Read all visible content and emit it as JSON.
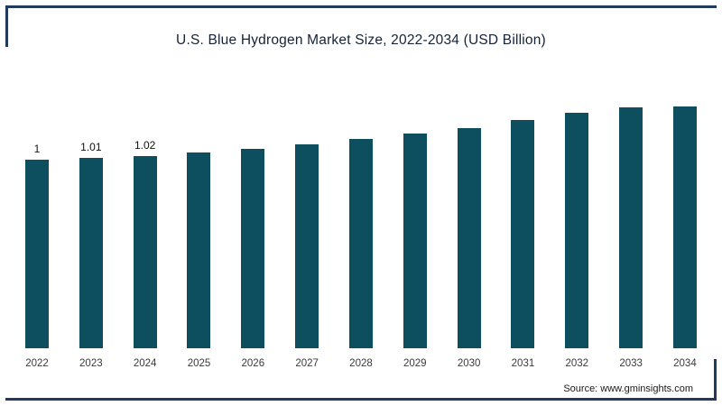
{
  "title": "U.S. Blue Hydrogen Market Size, 2022-2034 (USD Billion)",
  "footer": {
    "source": "Source: www.gminsights.com"
  },
  "colors": {
    "bar": "#0d4f5f",
    "frame": "#223a5e",
    "title_text": "#152238",
    "tick_text": "#3a3a3a"
  },
  "chart_data": {
    "type": "bar",
    "title": "U.S. Blue Hydrogen Market Size, 2022-2034 (USD Billion)",
    "categories": [
      "2022",
      "2023",
      "2024",
      "2025",
      "2026",
      "2027",
      "2028",
      "2029",
      "2030",
      "2031",
      "2032",
      "2033",
      "2034"
    ],
    "values": [
      1,
      1.01,
      1.02,
      1.04,
      1.06,
      1.08,
      1.11,
      1.14,
      1.17,
      1.21,
      1.25,
      1.29,
      1.34
    ],
    "value_labels": [
      "1",
      "1.01",
      "1.02",
      "",
      "",
      "",
      "",
      "",
      "",
      "",
      "",
      "",
      ""
    ],
    "xlabel": "",
    "ylabel": "USD Billion",
    "ylim": [
      0,
      1.5
    ],
    "grid": false,
    "legend": false,
    "bar_color": "#0d4f5f",
    "source": "Source: www.gminsights.com"
  }
}
